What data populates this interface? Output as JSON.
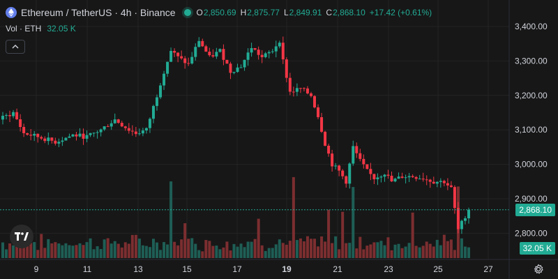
{
  "header": {
    "title": "Ethereum / TetherUS · 4h · Binance",
    "ohlc": {
      "o_label": "O",
      "o_value": "2,850.69",
      "h_label": "H",
      "h_value": "2,875.77",
      "l_label": "L",
      "l_value": "2,849.91",
      "c_label": "C",
      "c_value": "2,868.10",
      "change": "+17.42 (+0.61%)"
    }
  },
  "volume_legend": {
    "label": "Vol · ETH",
    "value": "32.05 K"
  },
  "price_tag": "2,868.10",
  "volume_tag": "32.05 K",
  "colors": {
    "up": "#22ab94",
    "down": "#f23645",
    "up_vol": "#1e5e55",
    "down_vol": "#7c2e30",
    "bg": "#171717",
    "grid": "#232323",
    "text": "#d1d4dc"
  },
  "icons": {
    "coin": "ethereum-icon",
    "status": "market-open-dot-icon",
    "collapse": "chevron-up-icon",
    "settings": "gear-icon",
    "logo": "tradingview-logo-icon"
  },
  "chart_data": {
    "type": "candlestick",
    "y_axis": {
      "ticks": [
        "3,400.00",
        "3,300.00",
        "3,200.00",
        "3,100.00",
        "3,000.00",
        "2,900.00",
        "2,800.00"
      ],
      "values": [
        3400,
        3300,
        3200,
        3100,
        3000,
        2900,
        2800
      ],
      "ylim": [
        2770,
        3440
      ]
    },
    "x_axis": {
      "ticks": [
        "9",
        "11",
        "13",
        "15",
        "17",
        "19",
        "21",
        "23",
        "25",
        "27"
      ],
      "bold_tick": "19"
    },
    "keypoints": [
      {
        "i": 0,
        "price": 3135
      },
      {
        "i": 3,
        "price": 3150
      },
      {
        "i": 6,
        "price": 3090
      },
      {
        "i": 10,
        "price": 3080
      },
      {
        "i": 15,
        "price": 3065
      },
      {
        "i": 20,
        "price": 3085
      },
      {
        "i": 24,
        "price": 3080
      },
      {
        "i": 28,
        "price": 3100
      },
      {
        "i": 32,
        "price": 3130
      },
      {
        "i": 36,
        "price": 3100
      },
      {
        "i": 38,
        "price": 3090
      },
      {
        "i": 41,
        "price": 3100
      },
      {
        "i": 44,
        "price": 3200
      },
      {
        "i": 46,
        "price": 3270
      },
      {
        "i": 48,
        "price": 3330
      },
      {
        "i": 50,
        "price": 3310
      },
      {
        "i": 53,
        "price": 3290
      },
      {
        "i": 56,
        "price": 3360
      },
      {
        "i": 59,
        "price": 3310
      },
      {
        "i": 62,
        "price": 3330
      },
      {
        "i": 65,
        "price": 3270
      },
      {
        "i": 68,
        "price": 3285
      },
      {
        "i": 71,
        "price": 3340
      },
      {
        "i": 74,
        "price": 3310
      },
      {
        "i": 77,
        "price": 3330
      },
      {
        "i": 79,
        "price": 3360
      },
      {
        "i": 80,
        "price": 3300
      },
      {
        "i": 82,
        "price": 3210
      },
      {
        "i": 85,
        "price": 3220
      },
      {
        "i": 88,
        "price": 3200
      },
      {
        "i": 90,
        "price": 3140
      },
      {
        "i": 92,
        "price": 3060
      },
      {
        "i": 94,
        "price": 3000
      },
      {
        "i": 96,
        "price": 2980
      },
      {
        "i": 98,
        "price": 2950
      },
      {
        "i": 100,
        "price": 3050
      },
      {
        "i": 102,
        "price": 3010
      },
      {
        "i": 104,
        "price": 2980
      },
      {
        "i": 106,
        "price": 2960
      },
      {
        "i": 109,
        "price": 2975
      },
      {
        "i": 111,
        "price": 2950
      },
      {
        "i": 114,
        "price": 2965
      },
      {
        "i": 117,
        "price": 2965
      },
      {
        "i": 120,
        "price": 2960
      },
      {
        "i": 123,
        "price": 2950
      },
      {
        "i": 126,
        "price": 2950
      },
      {
        "i": 128,
        "price": 2930
      },
      {
        "i": 130,
        "price": 2810
      },
      {
        "i": 131,
        "price": 2830
      },
      {
        "i": 132,
        "price": 2850
      },
      {
        "i": 133,
        "price": 2868
      }
    ],
    "last_close": 2868.1
  }
}
